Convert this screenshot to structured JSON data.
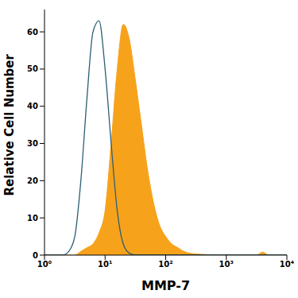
{
  "chart_data": {
    "type": "area",
    "x_label": "MMP-7",
    "y_label": "Relative Cell Number",
    "log": "x",
    "grid": false,
    "xlim": [
      1,
      10000
    ],
    "xticks": [
      {
        "value": 1,
        "label": "10⁰"
      },
      {
        "value": 10,
        "label": "10¹"
      },
      {
        "value": 100,
        "label": "10²"
      },
      {
        "value": 1000,
        "label": "10³"
      },
      {
        "value": 10000,
        "label": "10⁴"
      }
    ],
    "ylim": [
      0,
      66
    ],
    "yticks": [
      0,
      10,
      20,
      30,
      40,
      50,
      60
    ],
    "x": [
      1,
      1.259,
      1.585,
      1.995,
      2.512,
      3.162,
      3.981,
      5.012,
      6.31,
      7.943,
      10,
      12.59,
      15.85,
      19.95,
      25.12,
      31.62,
      39.81,
      50.12,
      63.1,
      79.43,
      100,
      125.9,
      158.5,
      199.5,
      251.2,
      316.2,
      398.1,
      501.2,
      631,
      794.3,
      1000,
      1259,
      1585,
      1995,
      2512,
      3162,
      3981,
      5012,
      6310,
      7943,
      10000
    ],
    "series": [
      {
        "type": "area",
        "color": "#f7a21b",
        "values": [
          0,
          0,
          0,
          0,
          0,
          0,
          1,
          2,
          3,
          6,
          12,
          30,
          50,
          62,
          58,
          47,
          35,
          23,
          14,
          8,
          5,
          3,
          2,
          1,
          0.5,
          0.3,
          0.2,
          0.1,
          0,
          0,
          0,
          0,
          0,
          0,
          0,
          0,
          0.8,
          0,
          0,
          0,
          0
        ]
      },
      {
        "type": "line",
        "color": "#2b5f75",
        "values": [
          0,
          0,
          0,
          0,
          1,
          5,
          20,
          42,
          60,
          63,
          50,
          30,
          12,
          3,
          0.5,
          0,
          0,
          0,
          0,
          0,
          0,
          0,
          0,
          0,
          0,
          0,
          0,
          0,
          0,
          0,
          0,
          0,
          0,
          0,
          0,
          0,
          0,
          0,
          0,
          0,
          0
        ]
      }
    ]
  }
}
